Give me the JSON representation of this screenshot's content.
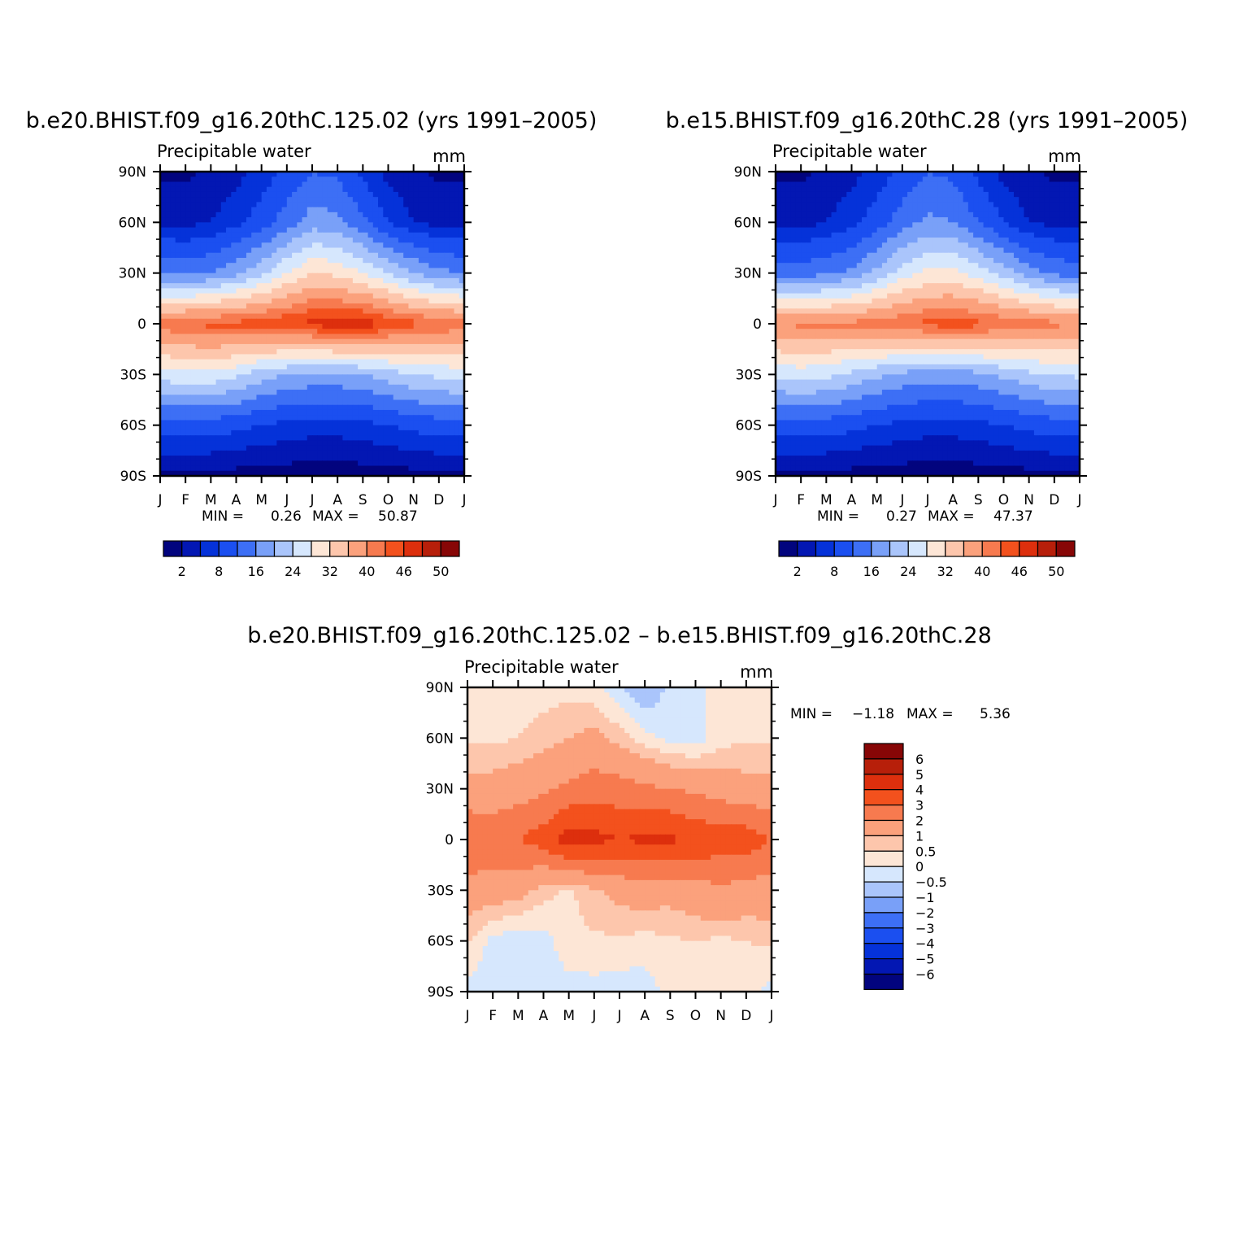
{
  "panels": [
    {
      "id": "top-left",
      "title": "b.e20.BHIST.f09_g16.20thC.125.02 (yrs 1991–2005)",
      "subtitle": "Precipitable water",
      "units": "mm",
      "min_label": "MIN =",
      "min_value": "0.26",
      "max_label": "MAX =",
      "max_value": "50.87"
    },
    {
      "id": "top-right",
      "title": "b.e15.BHIST.f09_g16.20thC.28 (yrs 1991–2005)",
      "subtitle": "Precipitable water",
      "units": "mm",
      "min_label": "MIN =",
      "min_value": "0.27",
      "max_label": "MAX =",
      "max_value": "47.37"
    },
    {
      "id": "bottom",
      "title": "b.e20.BHIST.f09_g16.20thC.125.02 – b.e15.BHIST.f09_g16.20thC.28",
      "subtitle": "Precipitable water",
      "units": "mm",
      "min_label": "MIN =",
      "min_value": "−1.18",
      "max_label": "MAX =",
      "max_value": "5.36"
    }
  ],
  "axes": {
    "x_ticks": [
      "J",
      "F",
      "M",
      "A",
      "M",
      "J",
      "J",
      "A",
      "S",
      "O",
      "N",
      "D",
      "J"
    ],
    "y_ticks": [
      "90N",
      "60N",
      "30N",
      "0",
      "30S",
      "60S",
      "90S"
    ]
  },
  "colorbar_abs": {
    "colors": [
      "#02047e",
      "#0317b3",
      "#0532d9",
      "#1b4ff0",
      "#3d6ff5",
      "#79a0f8",
      "#aac5fb",
      "#d6e7fd",
      "#fde6d6",
      "#fdc6ac",
      "#fba17c",
      "#f77a4f",
      "#f3511d",
      "#dd2f0d",
      "#b71f0a",
      "#870606"
    ],
    "labels": [
      "2",
      "8",
      "16",
      "24",
      "32",
      "40",
      "46",
      "50"
    ]
  },
  "colorbar_diff": {
    "colors_top_to_bottom": [
      "#870606",
      "#b71f0a",
      "#dd2f0d",
      "#f3511d",
      "#f77a4f",
      "#fba17c",
      "#fdc6ac",
      "#fde6d6",
      "#d6e7fd",
      "#aac5fb",
      "#79a0f8",
      "#3d6ff5",
      "#1b4ff0",
      "#0532d9",
      "#0317b3",
      "#02047e"
    ],
    "labels": [
      "6",
      "5",
      "4",
      "3",
      "2",
      "1",
      "0.5",
      "0",
      "−0.5",
      "−1",
      "−2",
      "−3",
      "−4",
      "−5",
      "−6"
    ]
  },
  "chart_data": [
    {
      "type": "heatmap",
      "title": "b.e20.BHIST.f09_g16.20thC.125.02 (yrs 1991–2005)",
      "subtitle": "Precipitable water",
      "units": "mm",
      "x": [
        "J",
        "F",
        "M",
        "A",
        "M",
        "J",
        "J",
        "A",
        "S",
        "O",
        "N",
        "D",
        "J"
      ],
      "y": [
        "90N",
        "60N",
        "30N",
        "0",
        "30S",
        "60S",
        "90S"
      ],
      "lat": [
        90,
        60,
        30,
        0,
        -30,
        -60,
        -90
      ],
      "values": [
        [
          1.5,
          1.5,
          2.5,
          4,
          6,
          9,
          12,
          11,
          7,
          4,
          2.5,
          1.5,
          1.5
        ],
        [
          4,
          4,
          5,
          7,
          10,
          14,
          18,
          17,
          13,
          8,
          5,
          4,
          4
        ],
        [
          16,
          15,
          16,
          19,
          23,
          28,
          32,
          31,
          28,
          24,
          20,
          17,
          16
        ],
        [
          42,
          43,
          44,
          44,
          45,
          46,
          47,
          48,
          48,
          46,
          44,
          43,
          42
        ],
        [
          26,
          27,
          27,
          25,
          22,
          20,
          19,
          19,
          20,
          22,
          24,
          25,
          26
        ],
        [
          10,
          10,
          10,
          9,
          8,
          7,
          6.5,
          6.5,
          7,
          8,
          9,
          10,
          10
        ],
        [
          1.5,
          1.2,
          1,
          0.8,
          0.5,
          0.4,
          0.3,
          0.3,
          0.4,
          0.6,
          0.9,
          1.2,
          1.5
        ]
      ],
      "min": 0.26,
      "max": 50.87
    },
    {
      "type": "heatmap",
      "title": "b.e15.BHIST.f09_g16.20thC.28 (yrs 1991–2005)",
      "subtitle": "Precipitable water",
      "units": "mm",
      "x": [
        "J",
        "F",
        "M",
        "A",
        "M",
        "J",
        "J",
        "A",
        "S",
        "O",
        "N",
        "D",
        "J"
      ],
      "y": [
        "90N",
        "60N",
        "30N",
        "0",
        "30S",
        "60S",
        "90S"
      ],
      "lat": [
        90,
        60,
        30,
        0,
        -30,
        -60,
        -90
      ],
      "values": [
        [
          1.5,
          1.5,
          2.5,
          4,
          6,
          9,
          12,
          11,
          7,
          4,
          2.5,
          1.5,
          1.5
        ],
        [
          4,
          4,
          5,
          7,
          10,
          14,
          17,
          16,
          12,
          8,
          5,
          4,
          4
        ],
        [
          14,
          14,
          15,
          17,
          21,
          26,
          29,
          29,
          26,
          22,
          18,
          15,
          14
        ],
        [
          40,
          41,
          41,
          41,
          42,
          43,
          44,
          45,
          44,
          43,
          42,
          41,
          40
        ],
        [
          25,
          26,
          25,
          23,
          21,
          19,
          18,
          18,
          19,
          21,
          23,
          24,
          25
        ],
        [
          10,
          10,
          10,
          9,
          8,
          7,
          6.5,
          6.5,
          7,
          8,
          9,
          10,
          10
        ],
        [
          1.5,
          1.2,
          1,
          0.8,
          0.5,
          0.4,
          0.3,
          0.3,
          0.4,
          0.6,
          0.9,
          1.2,
          1.5
        ]
      ],
      "min": 0.27,
      "max": 47.37
    },
    {
      "type": "heatmap",
      "title": "b.e20.BHIST.f09_g16.20thC.125.02 – b.e15.BHIST.f09_g16.20thC.28",
      "subtitle": "Precipitable water",
      "units": "mm",
      "x": [
        "J",
        "F",
        "M",
        "A",
        "M",
        "J",
        "J",
        "A",
        "S",
        "O",
        "N",
        "D",
        "J"
      ],
      "y": [
        "90N",
        "60N",
        "30N",
        "0",
        "30S",
        "60S",
        "90S"
      ],
      "lat": [
        90,
        60,
        30,
        0,
        -30,
        -60,
        -90
      ],
      "values": [
        [
          0.3,
          0.3,
          0.3,
          0.3,
          0.3,
          0.2,
          -0.5,
          -1.1,
          -0.3,
          -0.2,
          0.2,
          0.3,
          0.3
        ],
        [
          0.4,
          0.4,
          0.5,
          0.7,
          1,
          1.2,
          0.8,
          0.2,
          -0.2,
          -0.3,
          0.3,
          0.4,
          0.4
        ],
        [
          1.2,
          1.3,
          1.5,
          1.8,
          2.2,
          2.5,
          2.4,
          2.2,
          2,
          1.8,
          1.5,
          1.3,
          1.2
        ],
        [
          3,
          2.8,
          3,
          3.5,
          4.5,
          4.3,
          4,
          4.2,
          4.2,
          3.8,
          3.6,
          3.6,
          3
        ],
        [
          1.5,
          1.5,
          1.3,
          0.7,
          0.4,
          0.9,
          1.3,
          1.4,
          1.3,
          1.6,
          1.8,
          1.6,
          1.5
        ],
        [
          0.6,
          -0.2,
          -0.3,
          -0.2,
          0.3,
          0.4,
          0.4,
          0.3,
          0.4,
          0.5,
          0.4,
          0.5,
          0.6
        ],
        [
          -0.2,
          -0.3,
          -0.3,
          -0.2,
          -0.2,
          -0.2,
          -0.3,
          -0.3,
          0.2,
          0.3,
          0.2,
          0.2,
          -0.2
        ]
      ],
      "min": -1.18,
      "max": 5.36
    }
  ]
}
